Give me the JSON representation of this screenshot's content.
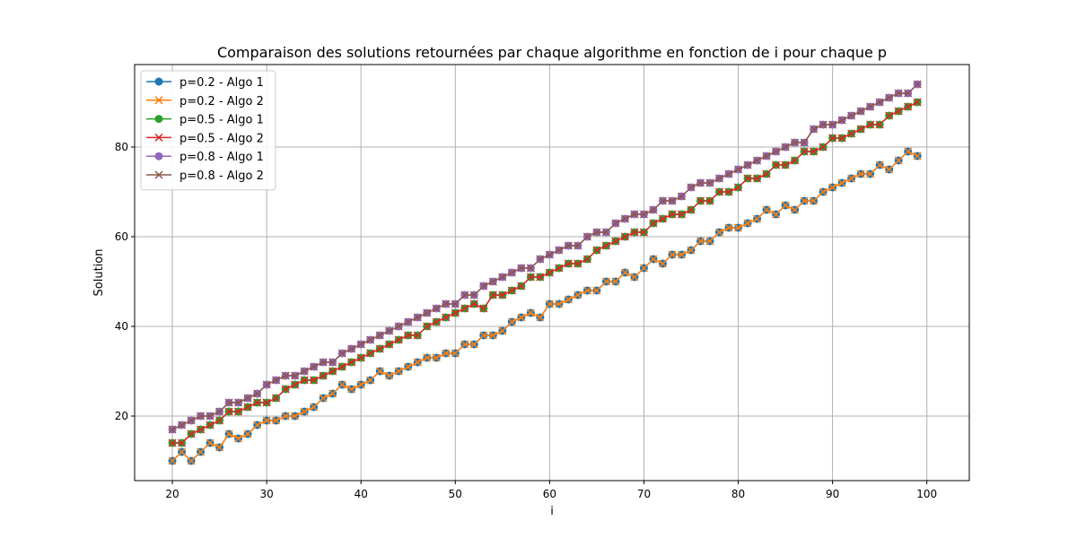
{
  "chart_data": {
    "type": "line",
    "title": "Comparaison des solutions retournées par chaque algorithme en fonction de i pour chaque p",
    "xlabel": "i",
    "ylabel": "Solution",
    "xlim": [
      16,
      104.5
    ],
    "ylim": [
      5.6,
      98.4
    ],
    "xticks": [
      20,
      30,
      40,
      50,
      60,
      70,
      80,
      90,
      100
    ],
    "yticks": [
      20,
      40,
      60,
      80
    ],
    "grid": true,
    "legend_position": "upper-left",
    "x": [
      20,
      21,
      22,
      23,
      24,
      25,
      26,
      27,
      28,
      29,
      30,
      31,
      32,
      33,
      34,
      35,
      36,
      37,
      38,
      39,
      40,
      41,
      42,
      43,
      44,
      45,
      46,
      47,
      48,
      49,
      50,
      51,
      52,
      53,
      54,
      55,
      56,
      57,
      58,
      59,
      60,
      61,
      62,
      63,
      64,
      65,
      66,
      67,
      68,
      69,
      70,
      71,
      72,
      73,
      74,
      75,
      76,
      77,
      78,
      79,
      80,
      81,
      82,
      83,
      84,
      85,
      86,
      87,
      88,
      89,
      90,
      91,
      92,
      93,
      94,
      95,
      96,
      97,
      98,
      99
    ],
    "series": [
      {
        "name": "p=0.2 - Algo 1",
        "color": "#1f77b4",
        "marker": "circle",
        "values": [
          10,
          12,
          10,
          12,
          14,
          13,
          16,
          15,
          16,
          18,
          19,
          19,
          20,
          20,
          21,
          22,
          24,
          25,
          27,
          26,
          27,
          28,
          30,
          29,
          30,
          31,
          32,
          33,
          33,
          34,
          34,
          36,
          36,
          38,
          38,
          39,
          41,
          42,
          43,
          42,
          45,
          45,
          46,
          47,
          48,
          48,
          50,
          50,
          52,
          51,
          53,
          55,
          54,
          56,
          56,
          57,
          59,
          59,
          61,
          62,
          62,
          63,
          64,
          66,
          65,
          67,
          66,
          68,
          68,
          70,
          71,
          72,
          73,
          74,
          74,
          76,
          75,
          77,
          79,
          78
        ]
      },
      {
        "name": "p=0.2 - Algo 2",
        "color": "#ff7f0e",
        "marker": "x",
        "values": [
          10,
          12,
          10,
          12,
          14,
          13,
          16,
          15,
          16,
          18,
          19,
          19,
          20,
          20,
          21,
          22,
          24,
          25,
          27,
          26,
          27,
          28,
          30,
          29,
          30,
          31,
          32,
          33,
          33,
          34,
          34,
          36,
          36,
          38,
          38,
          39,
          41,
          42,
          43,
          42,
          45,
          45,
          46,
          47,
          48,
          48,
          50,
          50,
          52,
          51,
          53,
          55,
          54,
          56,
          56,
          57,
          59,
          59,
          61,
          62,
          62,
          63,
          64,
          66,
          65,
          67,
          66,
          68,
          68,
          70,
          71,
          72,
          73,
          74,
          74,
          76,
          75,
          77,
          79,
          78
        ]
      },
      {
        "name": "p=0.5 - Algo 1",
        "color": "#2ca02c",
        "marker": "circle",
        "values": [
          14,
          14,
          16,
          17,
          18,
          19,
          21,
          21,
          22,
          23,
          23,
          24,
          26,
          27,
          28,
          28,
          29,
          30,
          31,
          32,
          33,
          34,
          35,
          36,
          37,
          38,
          38,
          40,
          41,
          42,
          43,
          44,
          45,
          44,
          47,
          47,
          48,
          49,
          51,
          51,
          52,
          53,
          54,
          54,
          55,
          57,
          58,
          59,
          60,
          61,
          61,
          63,
          64,
          65,
          65,
          66,
          68,
          68,
          70,
          70,
          71,
          73,
          73,
          74,
          76,
          76,
          77,
          79,
          79,
          80,
          82,
          82,
          83,
          84,
          85,
          85,
          87,
          88,
          89,
          90
        ]
      },
      {
        "name": "p=0.5 - Algo 2",
        "color": "#d62728",
        "marker": "x",
        "values": [
          14,
          14,
          16,
          17,
          18,
          19,
          21,
          21,
          22,
          23,
          23,
          24,
          26,
          27,
          28,
          28,
          29,
          30,
          31,
          32,
          33,
          34,
          35,
          36,
          37,
          38,
          38,
          40,
          41,
          42,
          43,
          44,
          45,
          44,
          47,
          47,
          48,
          49,
          51,
          51,
          52,
          53,
          54,
          54,
          55,
          57,
          58,
          59,
          60,
          61,
          61,
          63,
          64,
          65,
          65,
          66,
          68,
          68,
          70,
          70,
          71,
          73,
          73,
          74,
          76,
          76,
          77,
          79,
          79,
          80,
          82,
          82,
          83,
          84,
          85,
          85,
          87,
          88,
          89,
          90
        ]
      },
      {
        "name": "p=0.8 - Algo 1",
        "color": "#9467bd",
        "marker": "circle",
        "values": [
          17,
          18,
          19,
          20,
          20,
          21,
          23,
          23,
          24,
          25,
          27,
          28,
          29,
          29,
          30,
          31,
          32,
          32,
          34,
          35,
          36,
          37,
          38,
          39,
          40,
          41,
          42,
          43,
          44,
          45,
          45,
          47,
          47,
          49,
          50,
          51,
          52,
          53,
          53,
          55,
          56,
          57,
          58,
          58,
          60,
          61,
          61,
          63,
          64,
          65,
          65,
          66,
          68,
          68,
          69,
          71,
          72,
          72,
          73,
          74,
          75,
          76,
          77,
          78,
          79,
          80,
          81,
          81,
          84,
          85,
          85,
          86,
          87,
          88,
          89,
          90,
          91,
          92,
          92,
          94
        ]
      },
      {
        "name": "p=0.8 - Algo 2",
        "color": "#8c564b",
        "marker": "x",
        "values": [
          17,
          18,
          19,
          20,
          20,
          21,
          23,
          23,
          24,
          25,
          27,
          28,
          29,
          29,
          30,
          31,
          32,
          32,
          34,
          35,
          36,
          37,
          38,
          39,
          40,
          41,
          42,
          43,
          44,
          45,
          45,
          47,
          47,
          49,
          50,
          51,
          52,
          53,
          53,
          55,
          56,
          57,
          58,
          58,
          60,
          61,
          61,
          63,
          64,
          65,
          65,
          66,
          68,
          68,
          69,
          71,
          72,
          72,
          73,
          74,
          75,
          76,
          77,
          78,
          79,
          80,
          81,
          81,
          84,
          85,
          85,
          86,
          87,
          88,
          89,
          90,
          91,
          92,
          92,
          94
        ]
      }
    ]
  }
}
